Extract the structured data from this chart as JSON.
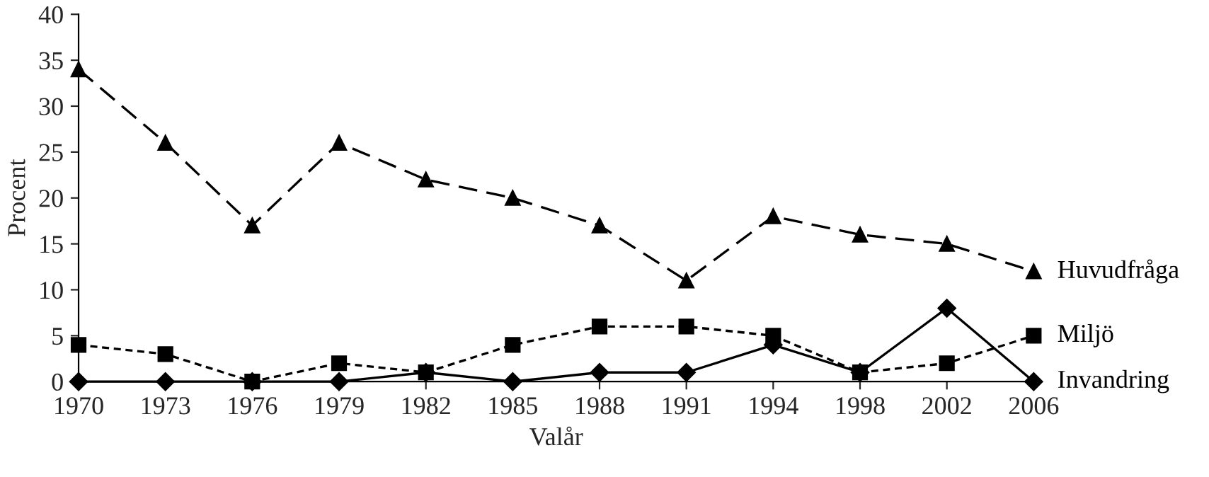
{
  "chart_data": {
    "type": "line",
    "xlabel": "Valår",
    "ylabel": "Procent",
    "categories": [
      "1970",
      "1973",
      "1976",
      "1979",
      "1982",
      "1985",
      "1988",
      "1991",
      "1994",
      "1998",
      "2002",
      "2006"
    ],
    "series": [
      {
        "name": "Huvudfråga",
        "color": "#000000",
        "marker": "triangle",
        "line_style": "dashed",
        "values": [
          34,
          26,
          17,
          26,
          22,
          20,
          17,
          11,
          18,
          16,
          15,
          12
        ]
      },
      {
        "name": "Miljö",
        "color": "#000000",
        "marker": "square",
        "line_style": "dotted",
        "values": [
          4,
          3,
          0,
          2,
          1,
          4,
          6,
          6,
          5,
          1,
          2,
          5
        ]
      },
      {
        "name": "Invandring",
        "color": "#000000",
        "marker": "diamond",
        "line_style": "solid",
        "values": [
          0,
          0,
          0,
          0,
          1,
          0,
          1,
          1,
          4,
          1,
          8,
          0
        ]
      }
    ],
    "ylim": [
      0,
      40
    ],
    "yticks": [
      0,
      5,
      10,
      15,
      20,
      25,
      30,
      35,
      40
    ],
    "grid": false,
    "legend": false
  }
}
